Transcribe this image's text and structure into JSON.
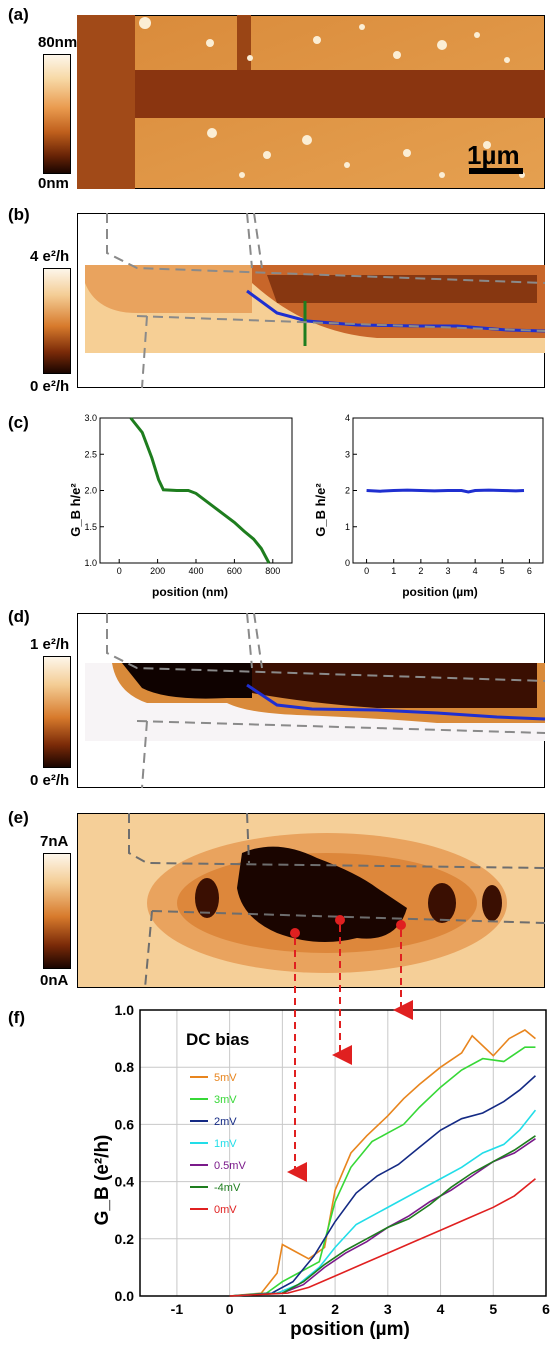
{
  "figure": {
    "panels": {
      "a": {
        "label": "(a)",
        "cbar_top": "80nm",
        "cbar_bottom": "0nm",
        "scale_bar": "1µm"
      },
      "b": {
        "label": "(b)",
        "cbar_top": "4 e²/h",
        "cbar_bottom": "0 e²/h"
      },
      "c": {
        "label": "(c)"
      },
      "d": {
        "label": "(d)",
        "cbar_top": "1 e²/h",
        "cbar_bottom": "0 e²/h"
      },
      "e": {
        "label": "(e)",
        "cbar_top": "7nA",
        "cbar_bottom": "0nA"
      },
      "f": {
        "label": "(f)"
      }
    },
    "colors": {
      "copper_light": "#fbe7c8",
      "copper_mid": "#d77a2c",
      "copper_dark": "#1a0500",
      "blue": "#1f2fd0",
      "green": "#1e7d1e",
      "red_marker": "#e02020"
    }
  },
  "chart_data": [
    {
      "type": "line",
      "panel": "c-left",
      "xlabel": "position (nm)",
      "ylabel": "G_B h/e²",
      "xlim": [
        -100,
        900
      ],
      "ylim": [
        1.0,
        3.0
      ],
      "x_ticks": [
        0,
        200,
        400,
        600,
        800
      ],
      "y_ticks": [
        "1.0",
        "1.5",
        "2.0",
        "2.5",
        "3.0"
      ],
      "series": [
        {
          "color": "#1e7d1e",
          "x": [
            60,
            120,
            170,
            205,
            230,
            300,
            360,
            400,
            450,
            500,
            550,
            600,
            650,
            700,
            740,
            780
          ],
          "y": [
            3.0,
            2.8,
            2.45,
            2.15,
            2.01,
            2.0,
            2.0,
            1.96,
            1.86,
            1.76,
            1.66,
            1.56,
            1.44,
            1.33,
            1.2,
            1.0
          ]
        }
      ]
    },
    {
      "type": "line",
      "panel": "c-right",
      "xlabel": "position (µm)",
      "ylabel": "G_B h/e²",
      "xlim": [
        -0.5,
        6.5
      ],
      "ylim": [
        0,
        4
      ],
      "x_ticks": [
        0,
        1,
        2,
        3,
        4,
        5,
        6
      ],
      "y_ticks": [
        "0",
        "1",
        "2",
        "3",
        "4"
      ],
      "series": [
        {
          "color": "#1f2fd0",
          "x": [
            0,
            0.5,
            1,
            1.5,
            2,
            2.5,
            3,
            3.5,
            3.75,
            4,
            4.5,
            5,
            5.5,
            5.8
          ],
          "y": [
            2.0,
            1.98,
            2.0,
            2.01,
            2.0,
            1.99,
            2.0,
            2.0,
            1.96,
            2.0,
            2.01,
            2.0,
            1.99,
            2.0
          ]
        }
      ]
    },
    {
      "type": "line",
      "panel": "f",
      "title": "DC bias",
      "xlabel": "position (µm)",
      "ylabel": "G_B (e²/h)",
      "xlim": [
        -1.7,
        6.0
      ],
      "ylim": [
        0,
        1.0
      ],
      "x_ticks": [
        "-1",
        "0",
        "1",
        "2",
        "3",
        "4",
        "5",
        "6"
      ],
      "y_ticks": [
        "0.0",
        "0.2",
        "0.4",
        "0.6",
        "0.8",
        "1.0"
      ],
      "grid": true,
      "legend_position": "top-left",
      "series": [
        {
          "name": "5mV",
          "color": "#e8851e",
          "x": [
            0,
            0.6,
            0.9,
            1.0,
            1.2,
            1.5,
            1.8,
            2.0,
            2.3,
            2.6,
            3.0,
            3.3,
            3.6,
            4.0,
            4.4,
            4.6,
            5.0,
            5.3,
            5.6,
            5.8
          ],
          "y": [
            0,
            0.01,
            0.08,
            0.18,
            0.16,
            0.13,
            0.17,
            0.37,
            0.5,
            0.56,
            0.63,
            0.69,
            0.74,
            0.8,
            0.85,
            0.91,
            0.84,
            0.9,
            0.93,
            0.9
          ]
        },
        {
          "name": "3mV",
          "color": "#37d837",
          "x": [
            0,
            0.7,
            1.0,
            1.3,
            1.7,
            2.0,
            2.3,
            2.7,
            3.0,
            3.3,
            3.6,
            4.0,
            4.4,
            4.8,
            5.2,
            5.6,
            5.8
          ],
          "y": [
            0,
            0.01,
            0.05,
            0.08,
            0.12,
            0.33,
            0.45,
            0.54,
            0.57,
            0.6,
            0.66,
            0.73,
            0.79,
            0.83,
            0.82,
            0.87,
            0.87
          ]
        },
        {
          "name": "2mV",
          "color": "#142a84",
          "x": [
            0,
            0.8,
            1.2,
            1.6,
            2.0,
            2.4,
            2.8,
            3.2,
            3.6,
            4.0,
            4.4,
            4.8,
            5.2,
            5.5,
            5.8
          ],
          "y": [
            0,
            0.01,
            0.05,
            0.14,
            0.26,
            0.36,
            0.42,
            0.46,
            0.52,
            0.58,
            0.62,
            0.64,
            0.68,
            0.72,
            0.77
          ]
        },
        {
          "name": "1mV",
          "color": "#22dde8",
          "x": [
            0,
            0.9,
            1.3,
            1.7,
            2.0,
            2.4,
            2.8,
            3.2,
            3.6,
            4.0,
            4.4,
            4.8,
            5.2,
            5.5,
            5.8
          ],
          "y": [
            0,
            0.01,
            0.04,
            0.1,
            0.17,
            0.25,
            0.29,
            0.33,
            0.37,
            0.41,
            0.45,
            0.5,
            0.53,
            0.58,
            0.65
          ]
        },
        {
          "name": "0.5mV",
          "color": "#7a1a8a",
          "x": [
            0,
            1.0,
            1.4,
            1.8,
            2.2,
            2.6,
            3.0,
            3.4,
            3.8,
            4.2,
            4.6,
            5.0,
            5.4,
            5.8
          ],
          "y": [
            0,
            0.01,
            0.04,
            0.1,
            0.15,
            0.19,
            0.24,
            0.28,
            0.33,
            0.37,
            0.42,
            0.47,
            0.5,
            0.55
          ]
        },
        {
          "name": "-4mV",
          "color": "#1e7d1e",
          "x": [
            0,
            1.0,
            1.4,
            1.8,
            2.2,
            2.6,
            3.0,
            3.4,
            3.8,
            4.2,
            4.6,
            5.0,
            5.4,
            5.8
          ],
          "y": [
            0,
            0.01,
            0.05,
            0.11,
            0.16,
            0.2,
            0.24,
            0.27,
            0.32,
            0.38,
            0.43,
            0.47,
            0.51,
            0.56
          ]
        },
        {
          "name": "0mV",
          "color": "#e02020",
          "x": [
            0,
            1.1,
            1.5,
            2.0,
            2.5,
            3.0,
            3.5,
            4.0,
            4.5,
            5.0,
            5.4,
            5.8
          ],
          "y": [
            0,
            0.01,
            0.03,
            0.07,
            0.11,
            0.15,
            0.19,
            0.23,
            0.27,
            0.31,
            0.35,
            0.41
          ]
        }
      ]
    }
  ]
}
